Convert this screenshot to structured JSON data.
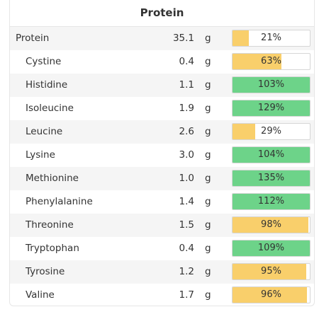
{
  "section_title": "Protein",
  "colors": {
    "low": "#f9cf6b",
    "high": "#6dd389"
  },
  "rows": [
    {
      "name": "Protein",
      "amount": "35.1",
      "unit": "g",
      "percent_label": "21%",
      "percent": 21,
      "level": "low",
      "indent": false
    },
    {
      "name": "Cystine",
      "amount": "0.4",
      "unit": "g",
      "percent_label": "63%",
      "percent": 63,
      "level": "low",
      "indent": true
    },
    {
      "name": "Histidine",
      "amount": "1.1",
      "unit": "g",
      "percent_label": "103%",
      "percent": 103,
      "level": "high",
      "indent": true
    },
    {
      "name": "Isoleucine",
      "amount": "1.9",
      "unit": "g",
      "percent_label": "129%",
      "percent": 129,
      "level": "high",
      "indent": true
    },
    {
      "name": "Leucine",
      "amount": "2.6",
      "unit": "g",
      "percent_label": "29%",
      "percent": 29,
      "level": "low",
      "indent": true
    },
    {
      "name": "Lysine",
      "amount": "3.0",
      "unit": "g",
      "percent_label": "104%",
      "percent": 104,
      "level": "high",
      "indent": true
    },
    {
      "name": "Methionine",
      "amount": "1.0",
      "unit": "g",
      "percent_label": "135%",
      "percent": 135,
      "level": "high",
      "indent": true
    },
    {
      "name": "Phenylalanine",
      "amount": "1.4",
      "unit": "g",
      "percent_label": "112%",
      "percent": 112,
      "level": "high",
      "indent": true
    },
    {
      "name": "Threonine",
      "amount": "1.5",
      "unit": "g",
      "percent_label": "98%",
      "percent": 98,
      "level": "low",
      "indent": true
    },
    {
      "name": "Tryptophan",
      "amount": "0.4",
      "unit": "g",
      "percent_label": "109%",
      "percent": 109,
      "level": "high",
      "indent": true
    },
    {
      "name": "Tyrosine",
      "amount": "1.2",
      "unit": "g",
      "percent_label": "95%",
      "percent": 95,
      "level": "low",
      "indent": true
    },
    {
      "name": "Valine",
      "amount": "1.7",
      "unit": "g",
      "percent_label": "96%",
      "percent": 96,
      "level": "low",
      "indent": true
    }
  ]
}
